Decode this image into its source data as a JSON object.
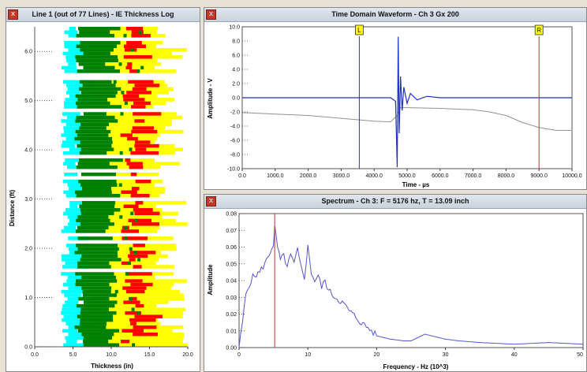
{
  "panels": {
    "thickness": {
      "title": "Line 1 (out of 77 Lines) - IE Thickness Log",
      "close_glyph": "x",
      "xlabel": "Thickness (in)",
      "ylabel": "Distance (ft)",
      "x_ticks": [
        "0.0",
        "5.0",
        "10.0",
        "15.0",
        "20.0"
      ],
      "y_ticks": [
        "0.0",
        "1.0",
        "2.0",
        "3.0",
        "4.0",
        "5.0",
        "6.0"
      ],
      "colors": {
        "cyan": "#00ffff",
        "green": "#008000",
        "yellow": "#ffff00",
        "red": "#ff0000"
      }
    },
    "waveform": {
      "title": "Time Domain Waveform - Ch 3 Gx 200",
      "close_glyph": "x",
      "xlabel": "Time - µs",
      "ylabel": "Amplitude - V",
      "x_ticks": [
        "0.0",
        "1000.0",
        "2000.0",
        "3000.0",
        "4000.0",
        "5000.0",
        "6000.0",
        "7000.0",
        "8000.0",
        "9000.0",
        "10000.0"
      ],
      "y_ticks": [
        "-10.0",
        "-8.0",
        "-6.0",
        "-4.0",
        "-2.0",
        "0.0",
        "2.0",
        "4.0",
        "6.0",
        "8.0",
        "10.0"
      ],
      "marker_left": "L",
      "marker_right": "R"
    },
    "spectrum": {
      "title": "Spectrum - Ch 3: F = 5176 hz, T = 13.09 inch",
      "close_glyph": "x",
      "xlabel": "Frequency - Hz (10^3)",
      "ylabel": "Amplitude",
      "x_ticks": [
        "0",
        "10",
        "20",
        "30",
        "40",
        "50"
      ],
      "y_ticks": [
        "0.00",
        "0.01",
        "0.02",
        "0.03",
        "0.04",
        "0.05",
        "0.06",
        "0.07",
        "0.08"
      ]
    }
  },
  "chart_data": [
    {
      "type": "heatmap",
      "title": "Line 1 (out of 77 Lines) - IE Thickness Log",
      "xlabel": "Thickness (in)",
      "ylabel": "Distance (ft)",
      "xlim": [
        0,
        20
      ],
      "ylim": [
        0,
        6.5
      ],
      "color_scale": [
        "cyan",
        "green",
        "yellow",
        "red"
      ],
      "bands": [
        {
          "name": "cyan",
          "from": 3.5,
          "to": 7.0
        },
        {
          "name": "green",
          "from": 5.0,
          "to": 11.0
        },
        {
          "name": "yellow",
          "from": 10.0,
          "to": 20.0
        },
        {
          "name": "red",
          "from": 11.5,
          "to": 15.5
        }
      ]
    },
    {
      "type": "line",
      "title": "Time Domain Waveform - Ch 3 Gx 200",
      "xlabel": "Time - µs",
      "ylabel": "Amplitude - V",
      "xlim": [
        0,
        10000
      ],
      "ylim": [
        -10,
        10
      ],
      "markers": [
        {
          "label": "L",
          "x": 3550,
          "color": "#3030b0"
        },
        {
          "label": "R",
          "x": 9000,
          "color": "#c03030"
        }
      ],
      "series": [
        {
          "color": "#2030c0",
          "x": [
            0,
            4500,
            4650,
            4700,
            4730,
            4760,
            4800,
            4850,
            4900,
            5000,
            5100,
            5300,
            5600,
            6000,
            10000
          ],
          "y": [
            0,
            0,
            -0.5,
            -9.8,
            8.6,
            -5,
            3,
            -1.8,
            1.5,
            -0.8,
            0.6,
            -0.3,
            0.2,
            0,
            0
          ]
        },
        {
          "color": "#909090",
          "x": [
            0,
            500,
            1000,
            2000,
            3000,
            4000,
            4500,
            4700,
            4800,
            5000,
            6000,
            7000,
            7500,
            8000,
            8500,
            9000,
            9500,
            10000
          ],
          "y": [
            -2.1,
            -2.2,
            -2.3,
            -2.5,
            -2.9,
            -3.3,
            -3.4,
            -2.5,
            -1.4,
            -1.4,
            -1.5,
            -1.7,
            -2,
            -2.5,
            -3.5,
            -4.2,
            -4.6,
            -4.6
          ]
        }
      ]
    },
    {
      "type": "line",
      "title": "Spectrum - Ch 3: F = 5176 hz, T = 13.09 inch",
      "xlabel": "Frequency - Hz (10^3)",
      "ylabel": "Amplitude",
      "xlim": [
        0,
        50
      ],
      "ylim": [
        0,
        0.08
      ],
      "marker_x": 5.176,
      "series": [
        {
          "color": "#5555cc",
          "x": [
            0,
            0.5,
            1,
            1.5,
            2,
            3,
            4,
            5,
            5.2,
            5.6,
            6,
            6.5,
            7,
            7.5,
            8,
            8.5,
            9,
            9.5,
            10,
            10.5,
            11,
            11.5,
            12,
            12.5,
            13,
            14,
            15,
            16,
            17,
            18,
            19,
            20,
            22,
            24,
            25,
            26,
            27,
            28,
            29,
            30,
            32,
            35,
            40,
            45,
            50
          ],
          "y": [
            0,
            0.015,
            0.032,
            0.038,
            0.042,
            0.045,
            0.052,
            0.062,
            0.071,
            0.06,
            0.052,
            0.055,
            0.048,
            0.055,
            0.05,
            0.058,
            0.048,
            0.042,
            0.06,
            0.045,
            0.04,
            0.043,
            0.036,
            0.04,
            0.034,
            0.03,
            0.027,
            0.022,
            0.018,
            0.014,
            0.011,
            0.007,
            0.005,
            0.004,
            0.004,
            0.006,
            0.008,
            0.007,
            0.006,
            0.005,
            0.004,
            0.003,
            0.002,
            0.003,
            0.002
          ]
        }
      ]
    }
  ]
}
